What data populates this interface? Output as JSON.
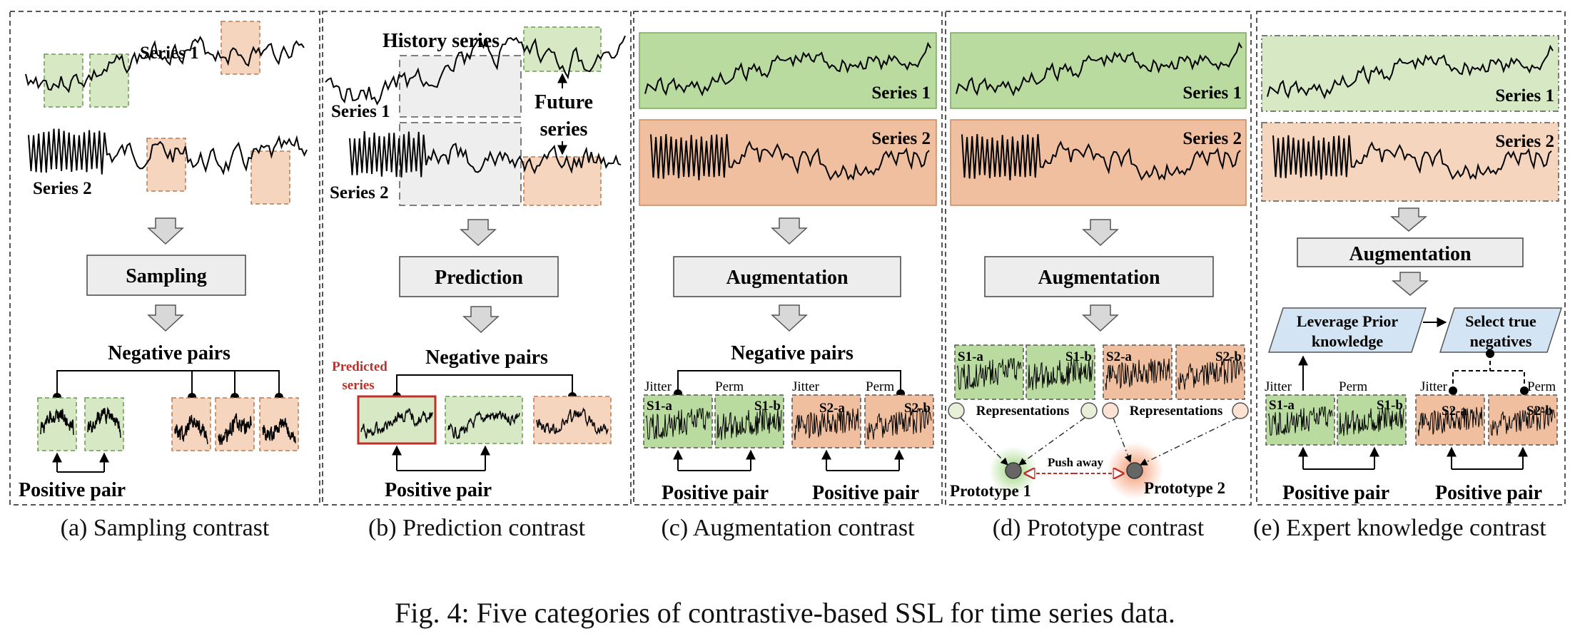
{
  "panels": {
    "a": {
      "series1": "Series 1",
      "series2": "Series 2",
      "process": "Sampling",
      "negative": "Negative pairs",
      "positive": "Positive pair",
      "caption": "(a) Sampling contrast"
    },
    "b": {
      "history": "History series",
      "future1": "Future",
      "future2": "series",
      "series1": "Series 1",
      "series2": "Series 2",
      "process": "Prediction",
      "predicted1": "Predicted",
      "predicted2": "series",
      "negative": "Negative pairs",
      "positive": "Positive pair",
      "caption": "(b) Prediction contrast"
    },
    "c": {
      "series1": "Series 1",
      "series2": "Series 2",
      "process": "Augmentation",
      "negative": "Negative pairs",
      "jitter": "Jitter",
      "perm": "Perm",
      "s1a": "S1-a",
      "s1b": "S1-b",
      "s2a": "S2-a",
      "s2b": "S2-b",
      "positive1": "Positive pair",
      "positive2": "Positive pair",
      "caption": "(c) Augmentation contrast"
    },
    "d": {
      "series1": "Series 1",
      "series2": "Series 2",
      "process": "Augmentation",
      "s1a": "S1-a",
      "s1b": "S1-b",
      "s2a": "S2-a",
      "s2b": "S2-b",
      "rep1": "Representations",
      "rep2": "Representations",
      "push": "Push away",
      "proto1": "Prototype 1",
      "proto2": "Prototype 2",
      "caption": "(d) Prototype contrast"
    },
    "e": {
      "series1": "Series 1",
      "series2": "Series 2",
      "process": "Augmentation",
      "prior1": "Leverage Prior",
      "prior2": "knowledge",
      "select1": "Select true",
      "select2": "negatives",
      "jitter": "Jitter",
      "perm": "Perm",
      "s1a": "S1-a",
      "s1b": "S1-b",
      "s2a": "S2-a",
      "s2b": "S2-b",
      "positive1": "Positive pair",
      "positive2": "Positive pair",
      "caption": "(e) Expert knowledge contrast"
    }
  },
  "figure_caption": "Fig. 4: Five categories of contrastive-based SSL for time series data.",
  "colors": {
    "green_fill": "#d6e9c4",
    "green_dark": "#b9dba0",
    "orange_fill": "#f6d5bf",
    "orange_dark": "#efbf9f",
    "box_fill": "#ededed",
    "blue_fill": "#d3e5f4",
    "red": "#c0302a",
    "gray_arrow": "#d8d8d8"
  }
}
